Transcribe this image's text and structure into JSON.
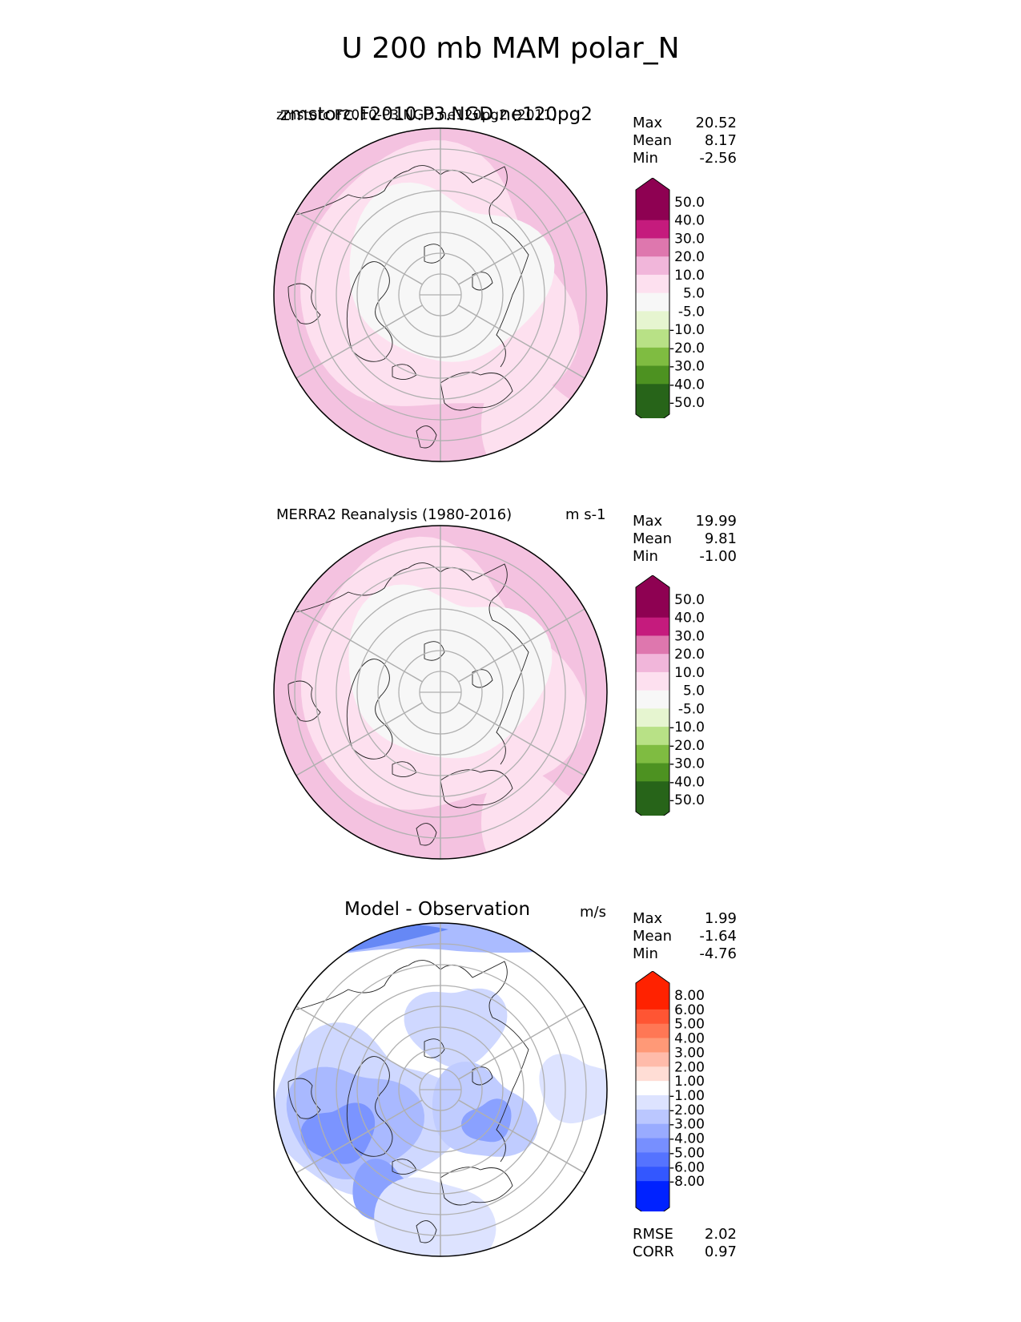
{
  "figure": {
    "title": "U 200 mb MAM polar_N"
  },
  "panels": [
    {
      "title": "zmstorc.F2010.P3.NGD.ne120pg2",
      "title_overlap": "zmstorc.F2010-P3.NGD.ne120pg2 (2011)",
      "units": "",
      "stats": {
        "max_label": "Max",
        "max": "20.52",
        "mean_label": "Mean",
        "mean": "8.17",
        "min_label": "Min",
        "min": "-2.56"
      }
    },
    {
      "title": "MERRA2 Reanalysis (1980-2016)",
      "units": "m s-1",
      "stats": {
        "max_label": "Max",
        "max": "19.99",
        "mean_label": "Mean",
        "mean": "9.81",
        "min_label": "Min",
        "min": "-1.00"
      }
    },
    {
      "title": "Model - Observation",
      "units": "m/s",
      "stats": {
        "max_label": "Max",
        "max": "1.99",
        "mean_label": "Mean",
        "mean": "-1.64",
        "min_label": "Min",
        "min": "-4.76"
      },
      "metrics": {
        "rmse_label": "RMSE",
        "rmse": "2.02",
        "corr_label": "CORR",
        "corr": "0.97"
      }
    }
  ],
  "chart_data": [
    {
      "type": "heatmap",
      "projection": "north polar stereographic",
      "title": "zmstorc.F2010.P3.NGD.ne120pg2",
      "colorbar": {
        "levels": [
          "50.0",
          "40.0",
          "30.0",
          "20.0",
          "10.0",
          "5.0",
          "-5.0",
          "-10.0",
          "-20.0",
          "-30.0",
          "-40.0",
          "-50.0"
        ],
        "colors": [
          "#8e0152",
          "#c51b7d",
          "#de77ae",
          "#f1b6da",
          "#fde0ef",
          "#f7f7f7",
          "#e6f5d0",
          "#b8e186",
          "#7fbc41",
          "#4d9221",
          "#276419"
        ]
      },
      "max": 20.52,
      "mean": 8.17,
      "min": -2.56
    },
    {
      "type": "heatmap",
      "projection": "north polar stereographic",
      "title": "MERRA2 Reanalysis (1980-2016)",
      "colorbar": {
        "levels": [
          "50.0",
          "40.0",
          "30.0",
          "20.0",
          "10.0",
          "5.0",
          "-5.0",
          "-10.0",
          "-20.0",
          "-30.0",
          "-40.0",
          "-50.0"
        ],
        "colors": [
          "#8e0152",
          "#c51b7d",
          "#de77ae",
          "#f1b6da",
          "#fde0ef",
          "#f7f7f7",
          "#e6f5d0",
          "#b8e186",
          "#7fbc41",
          "#4d9221",
          "#276419"
        ]
      },
      "max": 19.99,
      "mean": 9.81,
      "min": -1.0
    },
    {
      "type": "heatmap",
      "projection": "north polar stereographic",
      "title": "Model - Observation",
      "colorbar": {
        "levels": [
          "8.00",
          "6.00",
          "5.00",
          "4.00",
          "3.00",
          "2.00",
          "1.00",
          "-1.00",
          "-2.00",
          "-3.00",
          "-4.00",
          "-5.00",
          "-6.00",
          "-8.00"
        ],
        "colors": [
          "#ff2200",
          "#ff5533",
          "#ff7755",
          "#ff9977",
          "#ffbbaa",
          "#ffddd5",
          "#ffffff",
          "#dde3ff",
          "#bbc7ff",
          "#99abff",
          "#778fff",
          "#5573ff",
          "#3357ff",
          "#0022ff"
        ]
      },
      "max": 1.99,
      "mean": -1.64,
      "min": -4.76,
      "rmse": 2.02,
      "corr": 0.97
    }
  ]
}
